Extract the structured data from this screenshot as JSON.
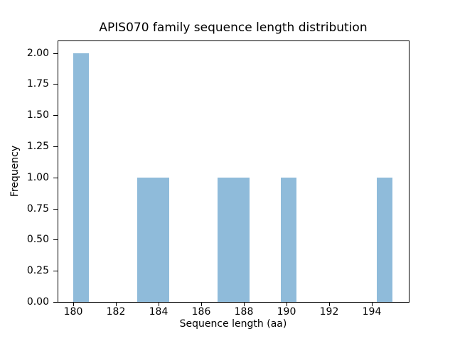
{
  "figure": {
    "background_color": "#ffffff",
    "axis_color": "#000000"
  },
  "chart_data": {
    "type": "bar",
    "title": "APIS070 family sequence length distribution",
    "xlabel": "Sequence length (aa)",
    "ylabel": "Frequency",
    "bar_color": "#8fbbda",
    "grid": false,
    "legend_position": "none",
    "xlim": [
      179.25,
      195.75
    ],
    "ylim": [
      0,
      2.1
    ],
    "xticks": [
      180,
      182,
      184,
      186,
      188,
      190,
      192,
      194
    ],
    "yticks": [
      0.0,
      0.25,
      0.5,
      0.75,
      1.0,
      1.25,
      1.5,
      1.75,
      2.0
    ],
    "ytick_labels": [
      "0.00",
      "0.25",
      "0.50",
      "0.75",
      "1.00",
      "1.25",
      "1.50",
      "1.75",
      "2.00"
    ],
    "bin_width": 0.75,
    "bars": [
      {
        "x_start": 180.0,
        "x_end": 180.75,
        "frequency": 2
      },
      {
        "x_start": 183.0,
        "x_end": 184.5,
        "frequency": 1
      },
      {
        "x_start": 186.75,
        "x_end": 188.25,
        "frequency": 1
      },
      {
        "x_start": 189.75,
        "x_end": 190.5,
        "frequency": 1
      },
      {
        "x_start": 194.25,
        "x_end": 195.0,
        "frequency": 1
      }
    ]
  }
}
